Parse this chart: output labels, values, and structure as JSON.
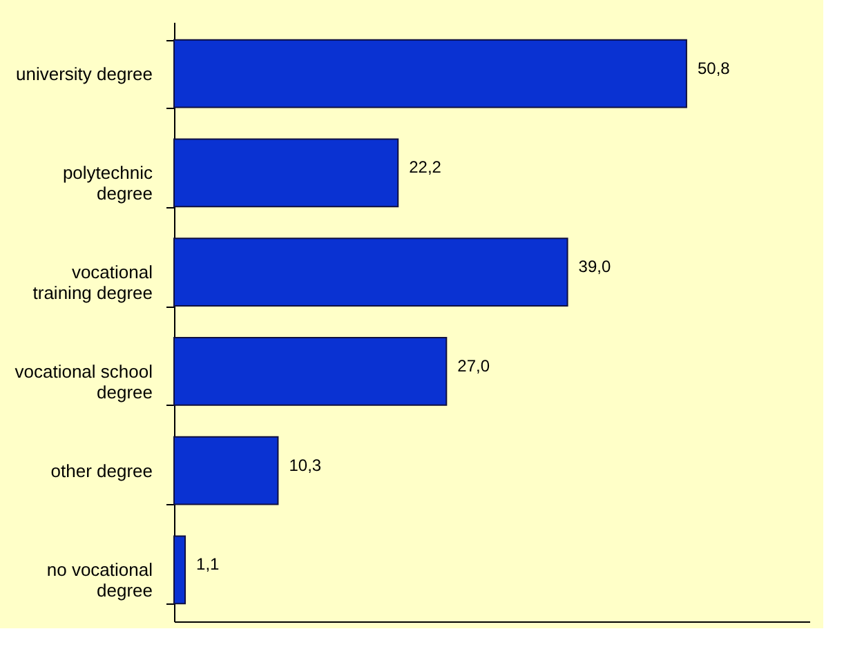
{
  "chart_data": {
    "type": "bar",
    "orientation": "horizontal",
    "categories": [
      "university degree",
      "polytechnic degree",
      "vocational training degree",
      "vocational school degree",
      "other degree",
      "no vocational degree"
    ],
    "values": [
      50.8,
      22.2,
      39.0,
      27.0,
      10.3,
      1.1
    ],
    "value_labels": [
      "50,8",
      "22,2",
      "39,0",
      "27,0",
      "10,3",
      "1,1"
    ],
    "color": "#0a32d2",
    "grid": false
  }
}
